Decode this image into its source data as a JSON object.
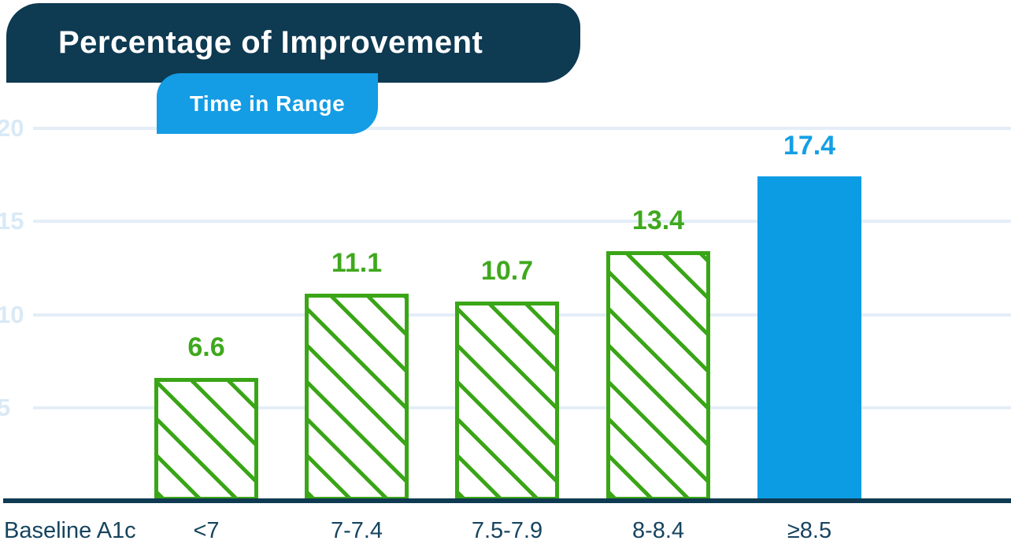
{
  "header": {
    "title": "Percentage of Improvement",
    "badge": "Time in Range"
  },
  "chart_data": {
    "type": "bar",
    "title": "Percentage of Improvement",
    "subtitle": "Time in Range",
    "xlabel": "Baseline A1c",
    "ylabel": "",
    "categories": [
      "<7",
      "7-7.4",
      "7.5-7.9",
      "8-8.4",
      "≥8.5"
    ],
    "values": [
      6.6,
      11.1,
      10.7,
      13.4,
      17.4
    ],
    "yticks": [
      5,
      10,
      15,
      20
    ],
    "ylim": [
      0,
      20
    ],
    "grid": true,
    "legend": "none",
    "bar_styles": [
      "hatched-green",
      "hatched-green",
      "hatched-green",
      "hatched-green",
      "solid-blue"
    ],
    "colors": {
      "navy": "#0e3a52",
      "badge_blue": "#149ce4",
      "bar_blue": "#0c9ce4",
      "hatch_green": "#3aa517",
      "value_green": "#3fa81d",
      "value_blue": "#149fe4",
      "gridline": "#e4eef8",
      "ytick_text": "#d9e9f6",
      "axis_text": "#17445f"
    }
  }
}
